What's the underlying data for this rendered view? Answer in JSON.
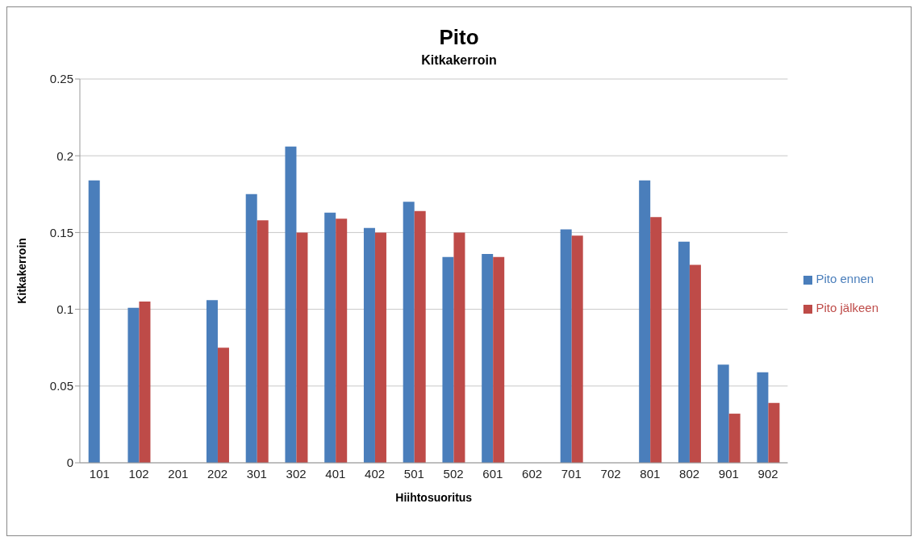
{
  "chart_data": {
    "type": "bar",
    "title": "Pito",
    "subtitle": "Kitkakerroin",
    "xlabel": "Hiihtosuoritus",
    "ylabel": "Kitkakerroin",
    "categories": [
      "101",
      "102",
      "201",
      "202",
      "301",
      "302",
      "401",
      "402",
      "501",
      "502",
      "601",
      "602",
      "701",
      "702",
      "801",
      "802",
      "901",
      "902"
    ],
    "series": [
      {
        "name": "Pito ennen",
        "color": "#4a7ebb",
        "values": [
          0.184,
          0.101,
          null,
          0.106,
          0.175,
          0.206,
          0.163,
          0.153,
          0.17,
          0.134,
          0.136,
          null,
          0.152,
          null,
          0.184,
          0.144,
          0.064,
          0.059
        ]
      },
      {
        "name": "Pito jälkeen",
        "color": "#be4b48",
        "values": [
          null,
          0.105,
          null,
          0.075,
          0.158,
          0.15,
          0.159,
          0.15,
          0.164,
          0.15,
          0.134,
          null,
          0.148,
          null,
          0.16,
          0.129,
          0.032,
          0.039
        ]
      }
    ],
    "ylim": [
      0,
      0.25
    ],
    "yticks": [
      0,
      0.05,
      0.1,
      0.15,
      0.2,
      0.25
    ],
    "grid": "y",
    "legend": "right"
  }
}
